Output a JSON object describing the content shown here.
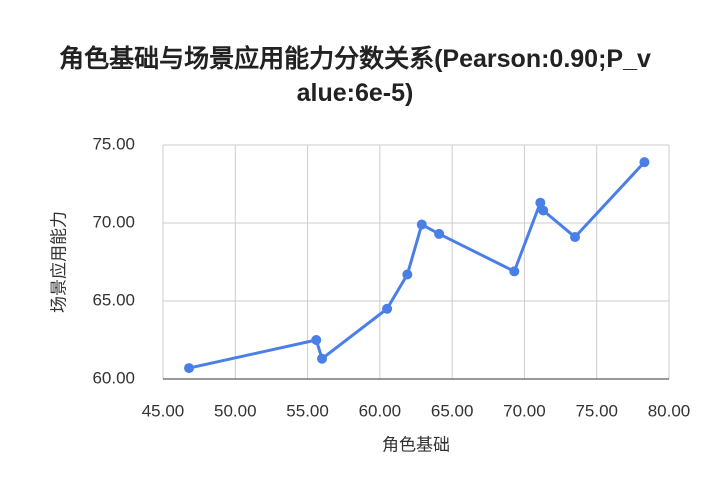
{
  "chart_data": {
    "type": "line",
    "title": "角色基础与场景应用能力分数关系(Pearson:0.90;P_value:6e-5)",
    "x_label": "角色基础",
    "y_label": "场景应用能力",
    "x": [
      46.8,
      55.6,
      56.0,
      60.5,
      61.9,
      62.9,
      64.1,
      69.3,
      71.1,
      71.3,
      73.5,
      78.3
    ],
    "series": [
      {
        "name": "场景应用能力",
        "color": "#4a7fe8",
        "values": [
          60.7,
          62.5,
          61.3,
          64.5,
          66.7,
          69.9,
          69.3,
          66.9,
          71.3,
          70.8,
          69.1,
          73.9
        ]
      }
    ],
    "xlim": [
      45,
      80
    ],
    "xticks": [
      {
        "value": 45,
        "label": "45.00"
      },
      {
        "value": 50,
        "label": "50.00"
      },
      {
        "value": 55,
        "label": "55.00"
      },
      {
        "value": 60,
        "label": "60.00"
      },
      {
        "value": 65,
        "label": "65.00"
      },
      {
        "value": 70,
        "label": "70.00"
      },
      {
        "value": 75,
        "label": "75.00"
      },
      {
        "value": 80,
        "label": "80.00"
      }
    ],
    "ylim": [
      60,
      75
    ],
    "yticks": [
      {
        "value": 60,
        "label": "60.00"
      },
      {
        "value": 65,
        "label": "65.00"
      },
      {
        "value": 70,
        "label": "70.00"
      },
      {
        "value": 75,
        "label": "75.00"
      }
    ],
    "grid": true
  }
}
